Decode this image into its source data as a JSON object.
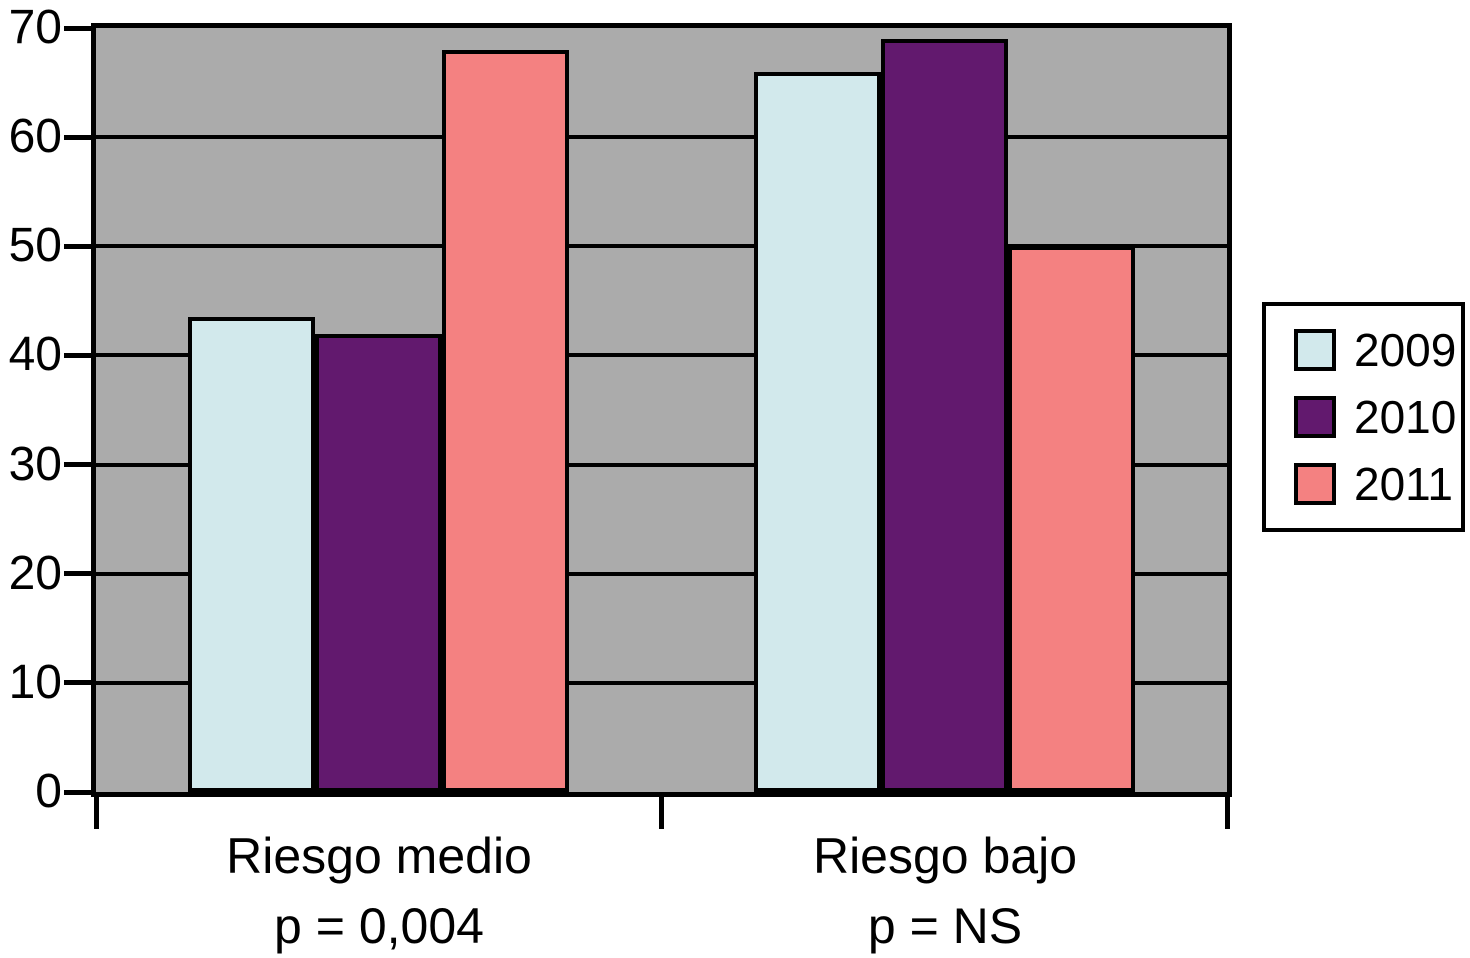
{
  "figure": {
    "background_color": "#ffffff",
    "plot_background_color": "#ababab",
    "axis_color": "#000000"
  },
  "chart_data": {
    "type": "bar",
    "title": "",
    "xlabel": "",
    "ylabel": "",
    "ylim": [
      0,
      70
    ],
    "yticks": [
      0,
      10,
      20,
      30,
      40,
      50,
      60,
      70
    ],
    "grid": true,
    "legend_position": "right",
    "categories": [
      {
        "label": "Riesgo medio",
        "sublabel": "p = 0,004"
      },
      {
        "label": "Riesgo bajo",
        "sublabel": "p = NS"
      }
    ],
    "series": [
      {
        "name": "2009",
        "color": "#d2e9ec",
        "values": [
          43.5,
          66
        ]
      },
      {
        "name": "2010",
        "color": "#62196e",
        "values": [
          42,
          69
        ]
      },
      {
        "name": "2011",
        "color": "#f48181",
        "values": [
          68,
          50
        ]
      }
    ]
  }
}
